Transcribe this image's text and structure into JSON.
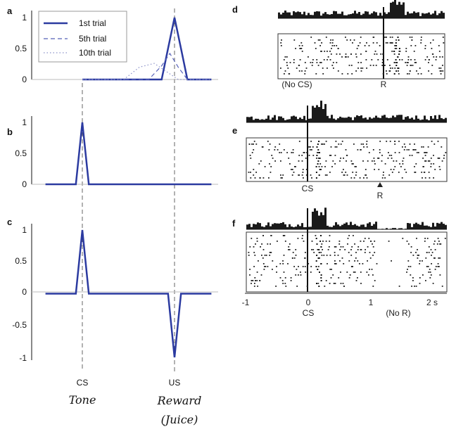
{
  "panel_labels": [
    "a",
    "b",
    "c",
    "d",
    "e",
    "f"
  ],
  "chart_data": [
    {
      "panel": "a",
      "type": "line",
      "ylim": [
        0,
        1
      ],
      "yticks": [
        "0",
        "0.5",
        "1"
      ],
      "legend": {
        "placement": "top-left",
        "entries": [
          "1st trial",
          "5th trial",
          "10th trial"
        ]
      },
      "series": [
        {
          "name": "1st trial",
          "style": "solid",
          "color": "#2b3aa0",
          "x": [
            0,
            0.86,
            0.93,
            1.0,
            1.07,
            1.14,
            1.4
          ],
          "y": [
            0,
            0,
            0.5,
            1.0,
            0.5,
            0,
            0
          ]
        },
        {
          "name": "5th trial",
          "style": "dashed",
          "color": "#5560b8",
          "x": [
            0,
            0.72,
            0.86,
            0.95,
            1.04,
            1.14,
            1.4
          ],
          "y": [
            0,
            0,
            0.22,
            0.42,
            0.2,
            0,
            0
          ]
        },
        {
          "name": "10th trial",
          "style": "dotted",
          "color": "#8a90c8",
          "x": [
            0,
            0.45,
            0.62,
            0.78,
            0.92,
            1.04,
            1.4
          ],
          "y": [
            0,
            0,
            0.2,
            0.26,
            0.12,
            0,
            0
          ]
        }
      ]
    },
    {
      "panel": "b",
      "type": "line",
      "ylim": [
        0,
        1
      ],
      "yticks": [
        "0",
        "0.5",
        "1"
      ],
      "series": [
        {
          "name": "",
          "style": "solid",
          "color": "#2b3aa0",
          "x": [
            -0.4,
            -0.07,
            0.0,
            0.07,
            1.4
          ],
          "y": [
            0,
            0,
            1.0,
            0,
            0
          ]
        }
      ]
    },
    {
      "panel": "c",
      "type": "line",
      "ylim": [
        -1,
        1
      ],
      "yticks": [
        "-1",
        "-0.5",
        "0",
        "0.5",
        "1"
      ],
      "series": [
        {
          "name": "",
          "style": "solid",
          "color": "#2b3aa0",
          "x": [
            -0.4,
            -0.07,
            0.0,
            0.07,
            0.93,
            1.0,
            1.07,
            1.4
          ],
          "y": [
            0,
            0,
            1.0,
            0,
            0,
            -1.0,
            0,
            0
          ]
        }
      ]
    }
  ],
  "markers": {
    "cs": {
      "label": "CS",
      "note": "Tone"
    },
    "us": {
      "label": "US",
      "note_line1": "Reward",
      "note_line2": "(Juice)"
    }
  },
  "rasters": {
    "d": {
      "bottom_labels": [
        "(No CS)",
        "R"
      ]
    },
    "e": {
      "bottom_labels": [
        "CS",
        "R"
      ]
    },
    "f": {
      "bottom_labels": [
        "CS",
        "(No R)"
      ],
      "x_ticks": [
        "-1",
        "0",
        "1",
        "2 s"
      ]
    }
  }
}
